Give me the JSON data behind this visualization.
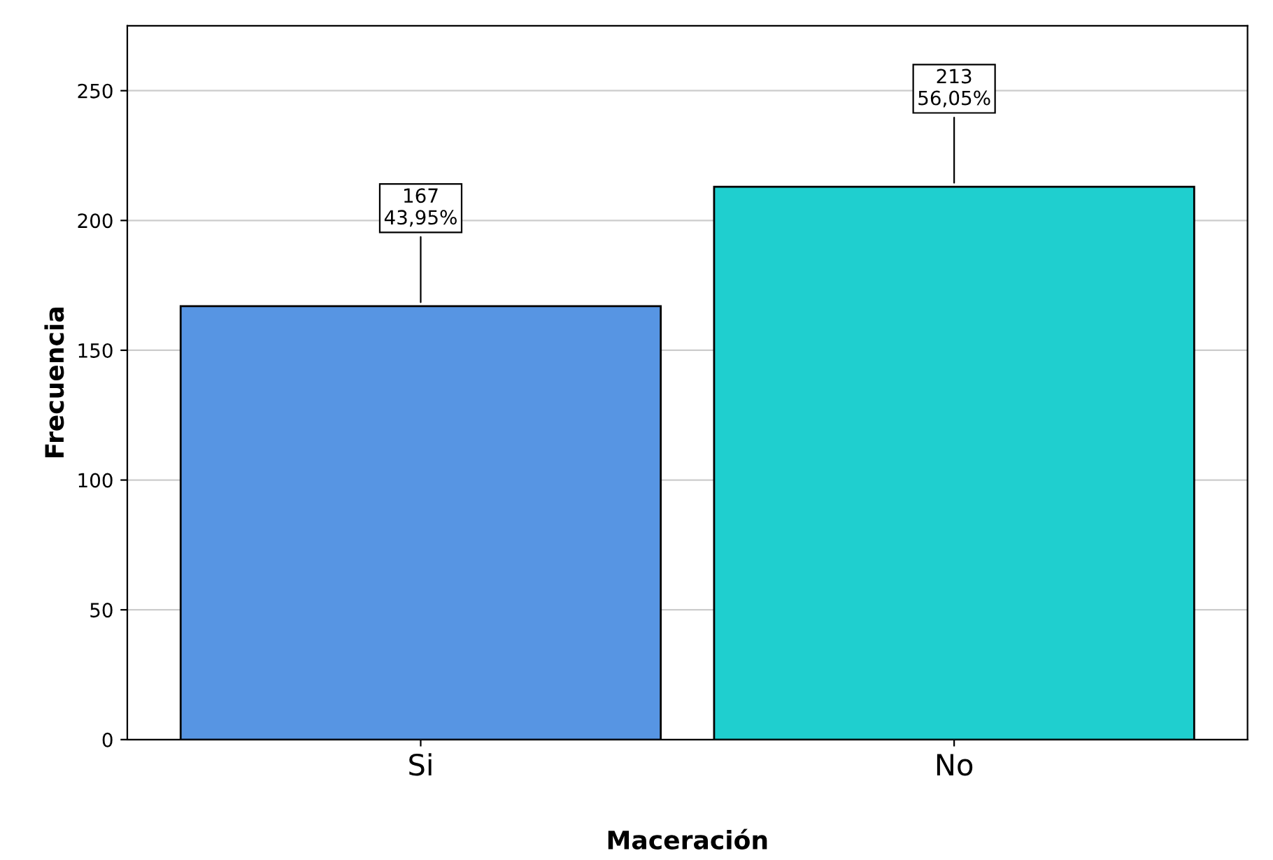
{
  "chart_data": {
    "type": "bar",
    "xlabel": "Maceración",
    "ylabel": "Frecuencia",
    "categories": [
      "Si",
      "No"
    ],
    "values": [
      167,
      213
    ],
    "colors": [
      "#5795e3",
      "#1fcfcf"
    ],
    "value_labels": [
      "167\n43,95%",
      "213\n56,05%"
    ],
    "ylim": [
      0,
      275
    ],
    "yticks": [
      0,
      50,
      100,
      150,
      200,
      250
    ],
    "grid": "y"
  }
}
